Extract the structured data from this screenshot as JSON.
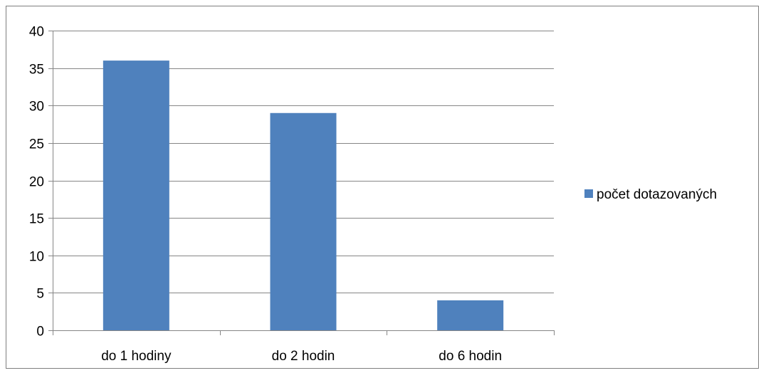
{
  "chart_data": {
    "type": "bar",
    "title": "",
    "xlabel": "",
    "ylabel": "",
    "categories": [
      "do 1 hodiny",
      "do 2 hodin",
      "do 6 hodin"
    ],
    "series": [
      {
        "name": "počet dotazovaných",
        "values": [
          36,
          29,
          4
        ],
        "color": "#4f81bd"
      }
    ],
    "ylim": [
      0,
      40
    ],
    "yticks": [
      0,
      5,
      10,
      15,
      20,
      25,
      30,
      35,
      40
    ],
    "grid": true,
    "legend_position": "right"
  }
}
